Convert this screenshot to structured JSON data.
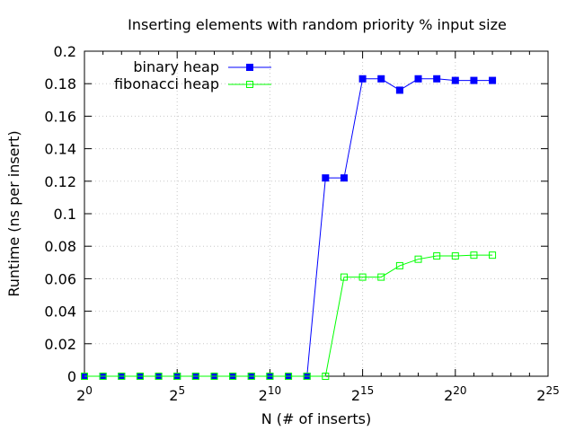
{
  "chart_data": {
    "type": "line",
    "title": "Inserting elements with random priority % input size",
    "xlabel": "N (# of inserts)",
    "ylabel": "Runtime (ns per insert)",
    "xscale": "log2",
    "xlim_exponent": [
      0,
      25
    ],
    "x_tick_base": "2",
    "x_tick_exponents": [
      "0",
      "5",
      "10",
      "15",
      "20",
      "25"
    ],
    "ylim": [
      0,
      0.2
    ],
    "y_ticks": [
      "0",
      "0.02",
      "0.04",
      "0.06",
      "0.08",
      "0.1",
      "0.12",
      "0.14",
      "0.16",
      "0.18",
      "0.2"
    ],
    "grid": true,
    "legend_position": "top-left",
    "x_exponents": [
      0,
      1,
      2,
      3,
      4,
      5,
      6,
      7,
      8,
      9,
      10,
      11,
      12,
      13,
      14,
      15,
      16,
      17,
      18,
      19,
      20,
      21,
      22
    ],
    "series": [
      {
        "name": "binary heap",
        "color": "#0000ff",
        "marker": "filled-square",
        "values": [
          0,
          0,
          0,
          0,
          0,
          0,
          0,
          0,
          0,
          0,
          0,
          0,
          0,
          0.122,
          0.122,
          0.183,
          0.183,
          0.176,
          0.183,
          0.183,
          0.182,
          0.182,
          0.182
        ]
      },
      {
        "name": "fibonacci heap",
        "color": "#00ff00",
        "marker": "open-square",
        "values": [
          0,
          0,
          0,
          0,
          0,
          0,
          0,
          0,
          0,
          0,
          0,
          0,
          0,
          0,
          0.061,
          0.061,
          0.061,
          0.068,
          0.072,
          0.074,
          0.074,
          0.0745,
          0.0745
        ]
      }
    ]
  }
}
